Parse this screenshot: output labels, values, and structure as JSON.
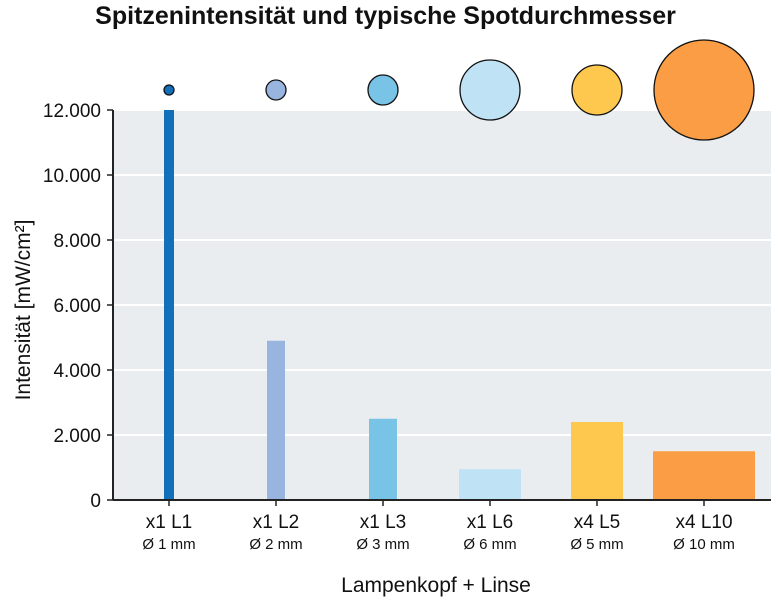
{
  "chart_data": {
    "type": "bar",
    "title": "Spitzenintensität und typische Spotdurchmesser",
    "xlabel": "Lampenkopf + Linse",
    "ylabel": "Intensität [mW/cm²]",
    "ylim": [
      0,
      12000
    ],
    "yticks": [
      "0",
      "2.000",
      "4.000",
      "6.000",
      "8.000",
      "10.000",
      "12.000"
    ],
    "grid": true,
    "categories": [
      "x1 L1",
      "x1 L2",
      "x1 L3",
      "x1 L6",
      "x4 L5",
      "x4 L10"
    ],
    "sublabels": [
      "Ø 1 mm",
      "Ø 2 mm",
      "Ø 3 mm",
      "Ø 6 mm",
      "Ø 5 mm",
      "Ø 10 mm"
    ],
    "values": [
      12000,
      4900,
      2500,
      950,
      2400,
      1500
    ],
    "spot_diameters_mm": [
      1,
      2,
      3,
      6,
      5,
      10
    ],
    "colors": [
      "#1170b9",
      "#98b5e0",
      "#79c4e6",
      "#c0e2f5",
      "#fec84e",
      "#fb9d44"
    ],
    "plot_background": "#eaedf0"
  }
}
